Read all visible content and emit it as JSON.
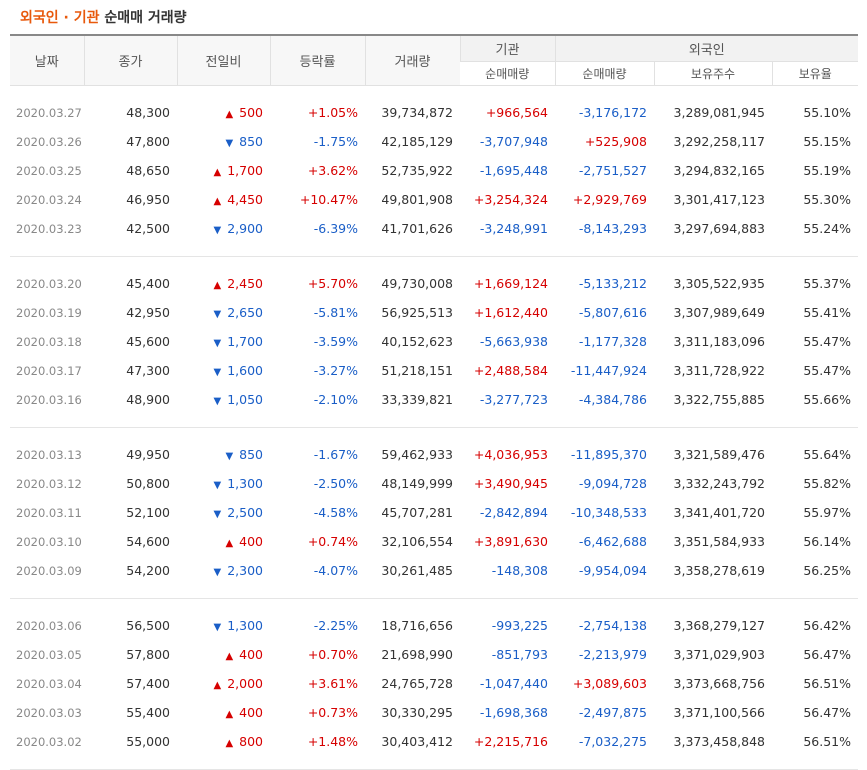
{
  "title": {
    "part1": "외국인 · 기관",
    "part2": "순매매 거래량"
  },
  "headers": {
    "date": "날짜",
    "close": "종가",
    "change": "전일비",
    "rate": "등락률",
    "volume": "거래량",
    "inst": "기관",
    "inst_net": "순매매량",
    "foreign": "외국인",
    "foreign_net": "순매매량",
    "foreign_shares": "보유주수",
    "foreign_ratio": "보유율"
  },
  "colors": {
    "up": "#d60000",
    "down": "#1a5ec7",
    "title_accent": "#e8590c"
  },
  "groups": [
    [
      {
        "date": "2020.03.27",
        "close": "48,300",
        "dir": "up",
        "change": "500",
        "rate": "+1.05%",
        "volume": "39,734,872",
        "inst": "+966,564",
        "foreign": "-3,176,172",
        "shares": "3,289,081,945",
        "ratio": "55.10%"
      },
      {
        "date": "2020.03.26",
        "close": "47,800",
        "dir": "down",
        "change": "850",
        "rate": "-1.75%",
        "volume": "42,185,129",
        "inst": "-3,707,948",
        "foreign": "+525,908",
        "shares": "3,292,258,117",
        "ratio": "55.15%"
      },
      {
        "date": "2020.03.25",
        "close": "48,650",
        "dir": "up",
        "change": "1,700",
        "rate": "+3.62%",
        "volume": "52,735,922",
        "inst": "-1,695,448",
        "foreign": "-2,751,527",
        "shares": "3,294,832,165",
        "ratio": "55.19%"
      },
      {
        "date": "2020.03.24",
        "close": "46,950",
        "dir": "up",
        "change": "4,450",
        "rate": "+10.47%",
        "volume": "49,801,908",
        "inst": "+3,254,324",
        "foreign": "+2,929,769",
        "shares": "3,301,417,123",
        "ratio": "55.30%"
      },
      {
        "date": "2020.03.23",
        "close": "42,500",
        "dir": "down",
        "change": "2,900",
        "rate": "-6.39%",
        "volume": "41,701,626",
        "inst": "-3,248,991",
        "foreign": "-8,143,293",
        "shares": "3,297,694,883",
        "ratio": "55.24%"
      }
    ],
    [
      {
        "date": "2020.03.20",
        "close": "45,400",
        "dir": "up",
        "change": "2,450",
        "rate": "+5.70%",
        "volume": "49,730,008",
        "inst": "+1,669,124",
        "foreign": "-5,133,212",
        "shares": "3,305,522,935",
        "ratio": "55.37%"
      },
      {
        "date": "2020.03.19",
        "close": "42,950",
        "dir": "down",
        "change": "2,650",
        "rate": "-5.81%",
        "volume": "56,925,513",
        "inst": "+1,612,440",
        "foreign": "-5,807,616",
        "shares": "3,307,989,649",
        "ratio": "55.41%"
      },
      {
        "date": "2020.03.18",
        "close": "45,600",
        "dir": "down",
        "change": "1,700",
        "rate": "-3.59%",
        "volume": "40,152,623",
        "inst": "-5,663,938",
        "foreign": "-1,177,328",
        "shares": "3,311,183,096",
        "ratio": "55.47%"
      },
      {
        "date": "2020.03.17",
        "close": "47,300",
        "dir": "down",
        "change": "1,600",
        "rate": "-3.27%",
        "volume": "51,218,151",
        "inst": "+2,488,584",
        "foreign": "-11,447,924",
        "shares": "3,311,728,922",
        "ratio": "55.47%"
      },
      {
        "date": "2020.03.16",
        "close": "48,900",
        "dir": "down",
        "change": "1,050",
        "rate": "-2.10%",
        "volume": "33,339,821",
        "inst": "-3,277,723",
        "foreign": "-4,384,786",
        "shares": "3,322,755,885",
        "ratio": "55.66%"
      }
    ],
    [
      {
        "date": "2020.03.13",
        "close": "49,950",
        "dir": "down",
        "change": "850",
        "rate": "-1.67%",
        "volume": "59,462,933",
        "inst": "+4,036,953",
        "foreign": "-11,895,370",
        "shares": "3,321,589,476",
        "ratio": "55.64%"
      },
      {
        "date": "2020.03.12",
        "close": "50,800",
        "dir": "down",
        "change": "1,300",
        "rate": "-2.50%",
        "volume": "48,149,999",
        "inst": "+3,490,945",
        "foreign": "-9,094,728",
        "shares": "3,332,243,792",
        "ratio": "55.82%"
      },
      {
        "date": "2020.03.11",
        "close": "52,100",
        "dir": "down",
        "change": "2,500",
        "rate": "-4.58%",
        "volume": "45,707,281",
        "inst": "-2,842,894",
        "foreign": "-10,348,533",
        "shares": "3,341,401,720",
        "ratio": "55.97%"
      },
      {
        "date": "2020.03.10",
        "close": "54,600",
        "dir": "up",
        "change": "400",
        "rate": "+0.74%",
        "volume": "32,106,554",
        "inst": "+3,891,630",
        "foreign": "-6,462,688",
        "shares": "3,351,584,933",
        "ratio": "56.14%"
      },
      {
        "date": "2020.03.09",
        "close": "54,200",
        "dir": "down",
        "change": "2,300",
        "rate": "-4.07%",
        "volume": "30,261,485",
        "inst": "-148,308",
        "foreign": "-9,954,094",
        "shares": "3,358,278,619",
        "ratio": "56.25%"
      }
    ],
    [
      {
        "date": "2020.03.06",
        "close": "56,500",
        "dir": "down",
        "change": "1,300",
        "rate": "-2.25%",
        "volume": "18,716,656",
        "inst": "-993,225",
        "foreign": "-2,754,138",
        "shares": "3,368,279,127",
        "ratio": "56.42%"
      },
      {
        "date": "2020.03.05",
        "close": "57,800",
        "dir": "up",
        "change": "400",
        "rate": "+0.70%",
        "volume": "21,698,990",
        "inst": "-851,793",
        "foreign": "-2,213,979",
        "shares": "3,371,029,903",
        "ratio": "56.47%"
      },
      {
        "date": "2020.03.04",
        "close": "57,400",
        "dir": "up",
        "change": "2,000",
        "rate": "+3.61%",
        "volume": "24,765,728",
        "inst": "-1,047,440",
        "foreign": "+3,089,603",
        "shares": "3,373,668,756",
        "ratio": "56.51%"
      },
      {
        "date": "2020.03.03",
        "close": "55,400",
        "dir": "up",
        "change": "400",
        "rate": "+0.73%",
        "volume": "30,330,295",
        "inst": "-1,698,368",
        "foreign": "-2,497,875",
        "shares": "3,371,100,566",
        "ratio": "56.47%"
      },
      {
        "date": "2020.03.02",
        "close": "55,000",
        "dir": "up",
        "change": "800",
        "rate": "+1.48%",
        "volume": "30,403,412",
        "inst": "+2,215,716",
        "foreign": "-7,032,275",
        "shares": "3,373,458,848",
        "ratio": "56.51%"
      }
    ]
  ]
}
